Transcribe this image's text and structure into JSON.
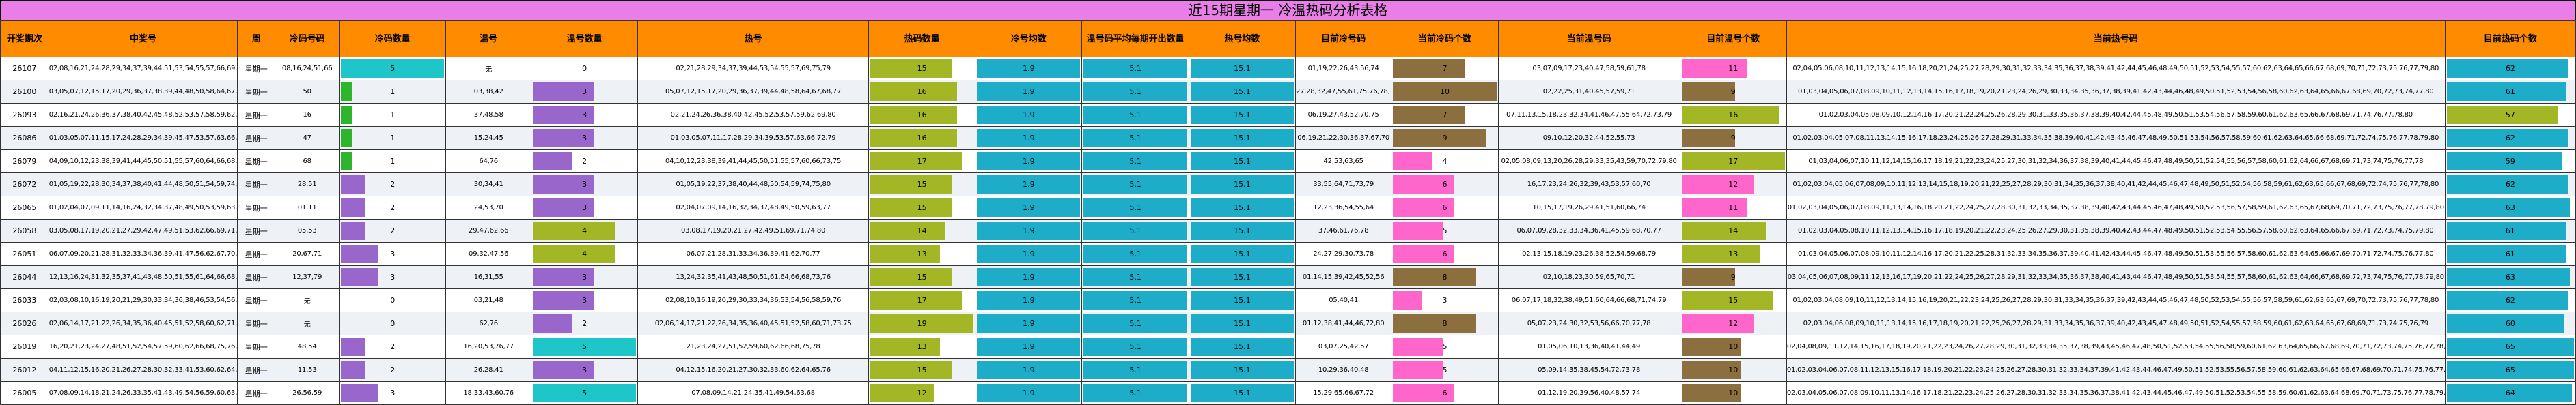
{
  "title": "近15期星期一 冷温热码分析表格",
  "headers": [
    "开奖期次",
    "中奖号",
    "周",
    "冷码号码",
    "冷码数量",
    "温号",
    "温号数量",
    "热号",
    "热码数量",
    "冷号均数",
    "温号码平均每期开出数量",
    "热号均数",
    "目前冷号码",
    "当前冷码个数",
    "当前温号码",
    "目前温号个数",
    "当前热号码",
    "目前热码个数"
  ],
  "colors": {
    "cold": "#2db52b",
    "cold_alt": "#9966cc",
    "warm": "#1ec5c9",
    "warm_alt": "#9966cc",
    "hot": "#a3b626",
    "avg": "#1eadc9",
    "curcold_a": "#8b6f3e",
    "curcold_b": "#ff66cc",
    "curwarm": "#1ec5c9",
    "curhot": "#1eadc9"
  },
  "rows": [
    {
      "issue": "26107",
      "win": "02,08,16,21,24,28,29,34,37,39,44,51,53,54,55,57,66,69,75,79",
      "week": "星期一",
      "cold": "08,16,24,51,66",
      "cold_n": "5",
      "warm": "无",
      "warm_n": "0",
      "hot": "02,21,28,29,34,37,39,44,53,54,55,57,69,75,79",
      "hot_n": "15",
      "cold_avg": "1.9",
      "warm_avg": "5.1",
      "hot_avg": "15.1",
      "cur_cold": "01,19,22,26,43,56,74",
      "cur_cold_n": "7",
      "cur_warm": "03,07,09,17,23,40,47,58,59,61,78",
      "cur_warm_n": "11",
      "cur_hot": "02,04,05,06,08,10,11,12,13,14,15,16,18,20,21,24,25,27,28,29,30,31,32,33,34,35,36,37,38,39,41,42,44,45,46,48,49,50,51,52,53,54,55,57,60,62,63,64,65,66,67,68,69,70,71,72,73,75,76,77,79,80",
      "cur_hot_n": "62"
    },
    {
      "issue": "26100",
      "win": "03,05,07,12,15,17,20,29,36,37,38,39,44,48,50,58,64,67,68,77",
      "week": "星期一",
      "cold": "50",
      "cold_n": "1",
      "warm": "03,38,42",
      "warm_n": "3",
      "hot": "05,07,12,15,17,20,29,36,37,39,44,48,58,64,67,68,77",
      "hot_n": "16",
      "cold_avg": "1.9",
      "warm_avg": "5.1",
      "hot_avg": "15.1",
      "cur_cold": "27,28,32,47,55,61,75,76,78,79",
      "cur_cold_n": "10",
      "cur_warm": "02,22,25,31,40,45,57,59,71",
      "cur_warm_n": "9",
      "cur_hot": "01,03,04,05,06,07,08,09,10,11,12,13,14,15,16,17,18,19,20,21,23,24,26,29,30,33,34,35,36,37,38,39,41,42,43,44,46,48,49,50,51,52,53,54,56,58,60,62,63,64,65,66,67,68,69,70,72,73,74,77,80",
      "cur_hot_n": "61"
    },
    {
      "issue": "26093",
      "win": "02,16,21,24,26,36,37,38,40,42,45,48,52,53,57,58,59,62,69,80",
      "week": "星期一",
      "cold": "16",
      "cold_n": "1",
      "warm": "37,48,58",
      "warm_n": "3",
      "hot": "02,21,24,26,36,38,40,42,45,52,53,57,59,62,69,80",
      "hot_n": "16",
      "cold_avg": "1.9",
      "warm_avg": "5.1",
      "hot_avg": "15.1",
      "cur_cold": "06,19,27,43,52,70,75",
      "cur_cold_n": "7",
      "cur_warm": "07,11,13,15,18,23,32,34,41,46,47,55,64,72,73,79",
      "cur_warm_n": "16",
      "cur_hot": "01,02,03,04,05,08,09,10,12,14,16,17,20,21,22,24,25,26,28,29,30,31,33,35,36,37,38,39,40,42,44,45,48,49,50,51,53,54,56,57,58,59,60,61,62,63,65,66,67,68,69,71,74,76,77,78,80",
      "cur_hot_n": "57"
    },
    {
      "issue": "26086",
      "win": "01,03,05,07,11,15,17,24,28,29,34,39,45,47,53,57,63,66,72,79",
      "week": "星期一",
      "cold": "47",
      "cold_n": "1",
      "warm": "15,24,45",
      "warm_n": "3",
      "hot": "01,03,05,07,11,17,28,29,34,39,53,57,63,66,72,79",
      "hot_n": "16",
      "cold_avg": "1.9",
      "warm_avg": "5.1",
      "hot_avg": "15.1",
      "cur_cold": "06,19,21,22,30,36,37,67,70",
      "cur_cold_n": "9",
      "cur_warm": "09,10,12,20,32,44,52,55,73",
      "cur_warm_n": "9",
      "cur_hot": "01,02,03,04,05,07,08,11,13,14,15,16,17,18,23,24,25,26,27,28,29,31,33,34,35,38,39,40,41,42,43,45,46,47,48,49,50,51,53,54,56,57,58,59,60,61,62,63,64,65,66,68,69,71,72,74,75,76,77,78,79,80",
      "cur_hot_n": "62"
    },
    {
      "issue": "26079",
      "win": "04,09,10,12,23,38,39,41,44,45,50,51,55,57,60,64,66,68,73,75,76",
      "week": "星期一",
      "cold": "68",
      "cold_n": "1",
      "warm": "64,76",
      "warm_n": "2",
      "hot": "04,10,12,23,38,39,41,44,45,50,51,55,57,60,66,73,75",
      "hot_n": "17",
      "cold_avg": "1.9",
      "warm_avg": "5.1",
      "hot_avg": "15.1",
      "cur_cold": "42,53,63,65",
      "cur_cold_n": "4",
      "cur_warm": "02,05,08,09,13,20,26,28,29,33,35,43,59,70,72,79,80",
      "cur_warm_n": "17",
      "cur_hot": "01,03,04,06,07,10,11,12,14,15,16,17,18,19,21,22,23,24,25,27,30,31,32,34,36,37,38,39,40,41,44,45,46,47,48,49,50,51,52,54,55,56,57,58,60,61,62,64,66,67,68,69,71,73,74,75,76,77,78",
      "cur_hot_n": "59"
    },
    {
      "issue": "26072",
      "win": "01,05,19,22,28,30,34,37,38,40,41,44,48,50,51,54,59,74,75,80",
      "week": "星期一",
      "cold": "28,51",
      "cold_n": "2",
      "warm": "30,34,41",
      "warm_n": "3",
      "hot": "01,05,19,22,37,38,40,44,48,50,54,59,74,75,80",
      "hot_n": "15",
      "cold_avg": "1.9",
      "warm_avg": "5.1",
      "hot_avg": "15.1",
      "cur_cold": "33,55,64,71,73,79",
      "cur_cold_n": "6",
      "cur_warm": "16,17,23,24,26,32,39,43,53,57,60,70",
      "cur_warm_n": "12",
      "cur_hot": "01,02,03,04,05,06,07,08,09,10,11,12,13,14,15,18,19,20,21,22,25,27,28,29,30,31,34,35,36,37,38,40,41,42,44,45,46,47,48,49,50,51,52,54,56,58,59,61,62,63,65,66,67,68,69,72,74,75,76,77,78,80",
      "cur_hot_n": "62"
    },
    {
      "issue": "26065",
      "win": "01,02,04,07,09,11,14,16,24,32,34,37,48,49,50,53,59,63,70,77",
      "week": "星期一",
      "cold": "01,11",
      "cold_n": "2",
      "warm": "24,53,70",
      "warm_n": "3",
      "hot": "02,04,07,09,14,16,32,34,37,48,49,50,59,63,77",
      "hot_n": "15",
      "cold_avg": "1.9",
      "warm_avg": "5.1",
      "hot_avg": "15.1",
      "cur_cold": "12,23,36,54,55,64",
      "cur_cold_n": "6",
      "cur_warm": "10,15,17,19,26,29,41,51,60,66,74",
      "cur_warm_n": "11",
      "cur_hot": "01,02,03,04,05,06,07,08,09,11,13,14,16,18,20,21,22,24,25,27,28,30,31,32,33,34,35,37,38,39,40,42,43,44,45,46,47,48,49,50,52,53,56,57,58,59,61,62,63,65,67,68,69,70,71,72,73,75,76,77,78,79,80",
      "cur_hot_n": "63"
    },
    {
      "issue": "26058",
      "win": "03,05,08,17,19,20,21,27,29,42,47,49,51,53,62,66,69,71,74,80",
      "week": "星期一",
      "cold": "05,53",
      "cold_n": "2",
      "warm": "29,47,62,66",
      "warm_n": "4",
      "hot": "03,08,17,19,20,21,27,42,49,51,69,71,74,80",
      "hot_n": "14",
      "cold_avg": "1.9",
      "warm_avg": "5.1",
      "hot_avg": "15.1",
      "cur_cold": "37,46,61,76,78",
      "cur_cold_n": "5",
      "cur_warm": "06,07,09,28,32,33,34,36,41,45,59,68,70,77",
      "cur_warm_n": "14",
      "cur_hot": "01,02,03,04,05,08,10,11,12,13,14,15,16,17,18,19,20,21,22,23,24,25,26,27,29,30,31,35,38,39,40,42,43,44,47,48,49,50,51,52,53,54,55,56,57,58,60,62,63,64,65,66,67,69,71,72,73,74,75,79,80",
      "cur_hot_n": "61"
    },
    {
      "issue": "26051",
      "win": "06,07,09,20,21,28,31,32,33,34,36,39,41,47,56,62,67,70,71,77",
      "week": "星期一",
      "cold": "20,67,71",
      "cold_n": "3",
      "warm": "09,32,47,56",
      "warm_n": "4",
      "hot": "06,07,21,28,31,33,34,36,39,41,62,70,77",
      "hot_n": "13",
      "cold_avg": "1.9",
      "warm_avg": "5.1",
      "hot_avg": "15.1",
      "cur_cold": "24,27,29,30,73,78",
      "cur_cold_n": "6",
      "cur_warm": "02,13,15,18,19,23,26,38,52,54,59,68,79",
      "cur_warm_n": "13",
      "cur_hot": "01,03,04,05,06,07,08,09,10,11,12,14,16,17,20,21,22,25,28,31,32,33,34,35,36,37,39,40,41,42,43,44,45,46,47,48,49,50,51,53,55,56,57,58,60,61,62,63,64,65,66,67,69,70,71,72,74,75,76,77,80",
      "cur_hot_n": "61"
    },
    {
      "issue": "26044",
      "win": "12,13,16,24,31,32,35,37,41,43,48,50,51,55,61,64,66,68,73,76,79",
      "week": "星期一",
      "cold": "12,37,79",
      "cold_n": "3",
      "warm": "16,31,55",
      "warm_n": "3",
      "hot": "13,24,32,35,41,43,48,50,51,61,64,66,68,73,76",
      "hot_n": "15",
      "cold_avg": "1.9",
      "warm_avg": "5.1",
      "hot_avg": "15.1",
      "cur_cold": "01,14,15,39,42,45,52,56",
      "cur_cold_n": "8",
      "cur_warm": "02,10,18,23,30,59,65,70,71",
      "cur_warm_n": "9",
      "cur_hot": "03,04,05,06,07,08,09,11,12,13,16,17,19,20,21,22,24,25,26,27,28,29,31,32,33,34,35,36,37,38,40,41,43,44,46,47,48,49,50,51,53,54,55,57,58,60,61,62,63,64,66,67,68,69,72,73,74,75,76,77,78,79,80",
      "cur_hot_n": "63"
    },
    {
      "issue": "26033",
      "win": "02,03,08,10,16,19,20,21,29,30,33,34,36,38,46,53,54,56,58,59,76",
      "week": "星期一",
      "cold": "无",
      "cold_n": "0",
      "warm": "03,21,48",
      "warm_n": "3",
      "hot": "02,08,10,16,19,20,29,30,33,34,36,53,54,56,58,59,76",
      "hot_n": "17",
      "cold_avg": "1.9",
      "warm_avg": "5.1",
      "hot_avg": "15.1",
      "cur_cold": "05,40,41",
      "cur_cold_n": "3",
      "cur_warm": "06,07,17,18,32,38,49,51,60,64,66,68,71,74,79",
      "cur_warm_n": "15",
      "cur_hot": "01,02,03,04,08,09,10,11,12,13,14,15,16,19,20,21,22,23,24,25,26,27,28,29,30,31,33,34,35,36,37,39,42,43,44,45,46,47,48,50,52,53,54,55,56,57,58,59,61,62,63,65,67,69,70,72,73,75,76,77,78,80",
      "cur_hot_n": "62"
    },
    {
      "issue": "26026",
      "win": "02,06,14,17,21,22,26,34,35,36,40,45,51,52,58,60,62,71,73,75,76",
      "week": "星期一",
      "cold": "无",
      "cold_n": "0",
      "warm": "62,76",
      "warm_n": "2",
      "hot": "02,06,14,17,21,22,26,34,35,36,40,45,51,52,58,60,71,73,75",
      "hot_n": "19",
      "cold_avg": "1.9",
      "warm_avg": "5.1",
      "hot_avg": "15.1",
      "cur_cold": "01,12,38,41,44,46,72,80",
      "cur_cold_n": "8",
      "cur_warm": "05,07,23,24,30,32,53,56,66,70,77,78",
      "cur_warm_n": "12",
      "cur_hot": "02,03,04,06,08,09,10,11,13,14,15,16,17,18,19,20,21,22,25,26,27,28,29,31,33,34,35,36,37,39,40,42,43,45,47,48,49,50,51,52,54,55,57,58,59,60,61,62,63,64,65,67,68,69,71,73,74,75,76,79",
      "cur_hot_n": "60"
    },
    {
      "issue": "26019",
      "win": "16,20,21,23,24,27,48,51,52,54,57,59,60,62,66,68,75,76,77,78",
      "week": "星期一",
      "cold": "48,54",
      "cold_n": "2",
      "warm": "16,20,53,76,77",
      "warm_n": "5",
      "hot": "21,23,24,27,51,52,59,60,62,66,68,75,78",
      "hot_n": "13",
      "cold_avg": "1.9",
      "warm_avg": "5.1",
      "hot_avg": "15.1",
      "cur_cold": "03,07,25,42,57",
      "cur_cold_n": "5",
      "cur_warm": "01,05,06,10,13,36,40,41,44,49",
      "cur_warm_n": "10",
      "cur_hot": "02,04,08,09,11,12,14,15,16,17,18,19,20,21,22,23,24,26,27,28,29,30,31,32,33,34,35,37,38,39,43,45,46,47,48,50,51,52,53,54,55,56,58,59,60,61,62,63,64,65,66,67,68,69,70,71,72,73,74,75,76,77,78,79,80",
      "cur_hot_n": "65"
    },
    {
      "issue": "26012",
      "win": "04,11,12,15,16,20,21,26,27,28,30,32,33,41,53,60,62,64,65,76",
      "week": "星期一",
      "cold": "11,53",
      "cold_n": "2",
      "warm": "26,28,41",
      "warm_n": "3",
      "hot": "04,12,15,16,20,21,27,30,32,33,60,62,64,65,76",
      "hot_n": "15",
      "cold_avg": "1.9",
      "warm_avg": "5.1",
      "hot_avg": "15.1",
      "cur_cold": "10,29,36,40,48",
      "cur_cold_n": "5",
      "cur_warm": "05,09,14,35,38,45,54,72,73,78",
      "cur_warm_n": "10",
      "cur_hot": "01,02,03,04,06,07,08,11,12,13,15,16,17,18,19,20,21,22,23,24,25,26,27,28,30,31,32,33,34,37,39,41,42,43,44,46,47,49,50,51,52,53,55,56,57,58,59,60,61,62,63,64,65,66,67,68,69,70,71,74,75,76,77,79,80",
      "cur_hot_n": "65"
    },
    {
      "issue": "26005",
      "win": "07,08,09,14,18,21,24,26,33,35,41,43,49,54,56,59,60,63,68,76",
      "week": "星期一",
      "cold": "26,56,59",
      "cold_n": "3",
      "warm": "18,33,43,60,76",
      "warm_n": "5",
      "hot": "07,08,09,14,21,24,35,41,49,54,63,68",
      "hot_n": "12",
      "cold_avg": "1.9",
      "warm_avg": "5.1",
      "hot_avg": "15.1",
      "cur_cold": "15,29,65,66,67,72",
      "cur_cold_n": "6",
      "cur_warm": "01,12,19,20,39,56,40,48,57,74",
      "cur_warm_n": "10",
      "cur_hot": "02,03,04,05,06,07,08,09,10,11,13,14,16,17,18,21,22,23,24,25,26,27,28,30,31,32,33,34,35,36,37,38,41,42,43,44,45,46,47,49,50,51,52,53,54,55,58,59,60,61,62,63,64,68,69,70,71,73,75,76,77,78,79,80",
      "cur_hot_n": "64"
    }
  ]
}
